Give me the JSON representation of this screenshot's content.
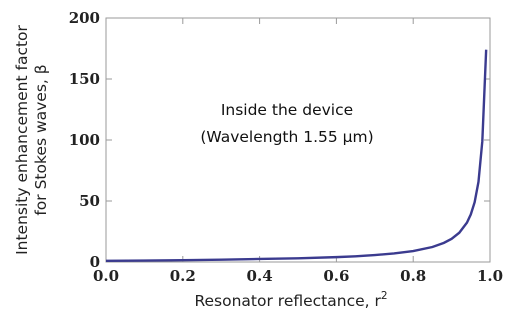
{
  "chart_data": {
    "type": "line",
    "title": "",
    "xlabel": "Resonator reflectance, r",
    "xlabel_superscript": "2",
    "ylabel_lines": [
      "Intensity enhancement factor",
      "for Stokes waves, β"
    ],
    "xlim": [
      0,
      1
    ],
    "ylim": [
      0,
      200
    ],
    "x_ticks": [
      0.0,
      0.2,
      0.4,
      0.6,
      0.8,
      1.0
    ],
    "x_tick_labels": [
      "0.0",
      "0.2",
      "0.4",
      "0.6",
      "0.8",
      "1.0"
    ],
    "y_ticks": [
      0,
      50,
      100,
      150,
      200
    ],
    "y_tick_labels": [
      "0",
      "50",
      "100",
      "150",
      "200"
    ],
    "grid": false,
    "annotation_lines": [
      "Inside the device",
      "(Wavelength 1.55 µm)"
    ],
    "series": [
      {
        "color": "#3b3b8f",
        "x": [
          0.0,
          0.1,
          0.2,
          0.3,
          0.4,
          0.5,
          0.6,
          0.65,
          0.7,
          0.75,
          0.8,
          0.85,
          0.88,
          0.9,
          0.92,
          0.94,
          0.95,
          0.96,
          0.97,
          0.98,
          0.99
        ],
        "y": [
          1.0,
          1.2,
          1.5,
          1.9,
          2.5,
          3.0,
          4.0,
          4.7,
          5.7,
          7.0,
          9.0,
          12.3,
          15.7,
          19.0,
          24.0,
          32.3,
          39.0,
          49.0,
          65.7,
          99.0,
          174.0
        ]
      }
    ]
  }
}
